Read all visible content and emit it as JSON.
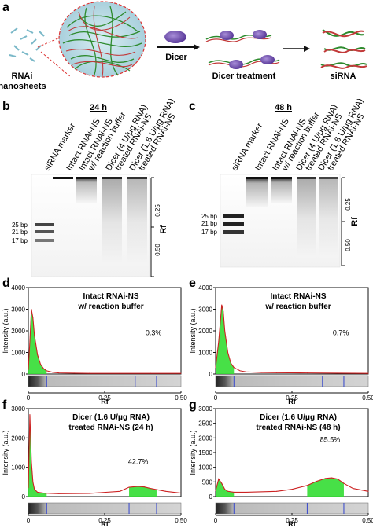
{
  "panel_letters": [
    "a",
    "b",
    "c",
    "d",
    "e",
    "f",
    "g"
  ],
  "panel_a": {
    "label_nanosheets_line1": "RNAi",
    "label_nanosheets_line2": "nanosheets",
    "arrow_label": "Dicer",
    "label_dicer_treatment": "Dicer treatment",
    "label_sirna": "siRNA"
  },
  "panel_b": {
    "title": "24 h"
  },
  "panel_c": {
    "title": "48 h"
  },
  "gel_lane_labels": [
    "siRNA marker",
    "Intact RNAi-NS",
    "Intact RNAi-NS",
    "w/ reaction buffer",
    "Dicer (4 U/μg RNA)",
    "treated RNAi-NS",
    "Dicer (1.6 U/μg RNA)",
    "treated RNAi-NS"
  ],
  "gel_markers": [
    "25 bp",
    "21 bp",
    "17 bp"
  ],
  "rf_axis": {
    "label": "Rf",
    "ticks": [
      "0.25",
      "0.50"
    ]
  },
  "colors": {
    "fill": "#33dd33",
    "curve": "#cc2222",
    "marker": "#3344cc"
  },
  "chart_data": [
    {
      "panel": "d",
      "type": "area",
      "title_line1": "Intact RNAi-NS",
      "title_line2": "w/ reaction buffer",
      "annotation": "0.3%",
      "xlabel": "Rf",
      "ylabel": "Intensity (a.u.)",
      "xlim": [
        0,
        0.5
      ],
      "ylim": [
        0,
        4000
      ],
      "xticks": [
        "0",
        "0.25",
        "0.50"
      ],
      "yticks": [
        "0",
        "1000",
        "2000",
        "3000",
        "4000"
      ],
      "x": [
        0,
        0.005,
        0.01,
        0.015,
        0.02,
        0.03,
        0.04,
        0.05,
        0.06,
        0.08,
        0.1,
        0.15,
        0.2,
        0.3,
        0.4,
        0.5
      ],
      "y": [
        200,
        1500,
        3000,
        2600,
        1800,
        900,
        450,
        250,
        150,
        80,
        50,
        40,
        30,
        30,
        30,
        30
      ],
      "shaded_ranges": [
        [
          0,
          0.06
        ]
      ]
    },
    {
      "panel": "e",
      "type": "area",
      "title_line1": "Intact RNAi-NS",
      "title_line2": "w/ reaction buffer",
      "annotation": "0.7%",
      "xlabel": "Rf",
      "ylabel": "Intensity (a.u.)",
      "xlim": [
        0,
        0.5
      ],
      "ylim": [
        0,
        4000
      ],
      "xticks": [
        "0",
        "0.25",
        "0.50"
      ],
      "yticks": [
        "0",
        "1000",
        "2000",
        "3000",
        "4000"
      ],
      "x": [
        0,
        0.01,
        0.02,
        0.025,
        0.03,
        0.04,
        0.05,
        0.06,
        0.08,
        0.1,
        0.15,
        0.2,
        0.3,
        0.4,
        0.5
      ],
      "y": [
        300,
        1500,
        3200,
        2900,
        2000,
        1000,
        500,
        300,
        150,
        100,
        70,
        60,
        50,
        40,
        30
      ],
      "shaded_ranges": [
        [
          0,
          0.06
        ]
      ]
    },
    {
      "panel": "f",
      "type": "area",
      "title_line1": "Dicer (1.6 U/μg RNA)",
      "title_line2": "treated RNAi-NS (24 h)",
      "annotation": "42.7%",
      "xlabel": "Rf",
      "ylabel": "Intensity (a.u.)",
      "xlim": [
        0,
        0.5
      ],
      "ylim": [
        0,
        3000
      ],
      "xticks": [
        "0",
        "0.25",
        "0.50"
      ],
      "yticks": [
        "0",
        "1000",
        "2000",
        "3000"
      ],
      "x": [
        0,
        0.005,
        0.01,
        0.015,
        0.02,
        0.03,
        0.05,
        0.1,
        0.2,
        0.3,
        0.33,
        0.36,
        0.38,
        0.4,
        0.42,
        0.45,
        0.5
      ],
      "y": [
        300,
        2800,
        1200,
        500,
        250,
        150,
        120,
        100,
        110,
        180,
        320,
        350,
        330,
        280,
        240,
        180,
        120
      ],
      "shaded_ranges": [
        [
          0,
          0.06
        ],
        [
          0.33,
          0.42
        ]
      ]
    },
    {
      "panel": "g",
      "type": "area",
      "title_line1": "Dicer (1.6 U/μg RNA)",
      "title_line2": "treated RNAi-NS (48 h)",
      "annotation": "85.5%",
      "xlabel": "Rf",
      "ylabel": "Intensity (a.u.)",
      "xlim": [
        0,
        0.5
      ],
      "ylim": [
        0,
        3000
      ],
      "xticks": [
        "0",
        "0.25",
        "0.50"
      ],
      "yticks": [
        "0",
        "500",
        "1000",
        "1500",
        "2000",
        "2500",
        "3000"
      ],
      "x": [
        0,
        0.01,
        0.02,
        0.03,
        0.04,
        0.06,
        0.1,
        0.2,
        0.25,
        0.3,
        0.33,
        0.36,
        0.38,
        0.4,
        0.42,
        0.45,
        0.5
      ],
      "y": [
        200,
        600,
        450,
        250,
        180,
        150,
        150,
        180,
        250,
        380,
        520,
        620,
        640,
        600,
        450,
        280,
        180
      ],
      "shaded_ranges": [
        [
          0,
          0.06
        ],
        [
          0.3,
          0.42
        ]
      ]
    }
  ]
}
